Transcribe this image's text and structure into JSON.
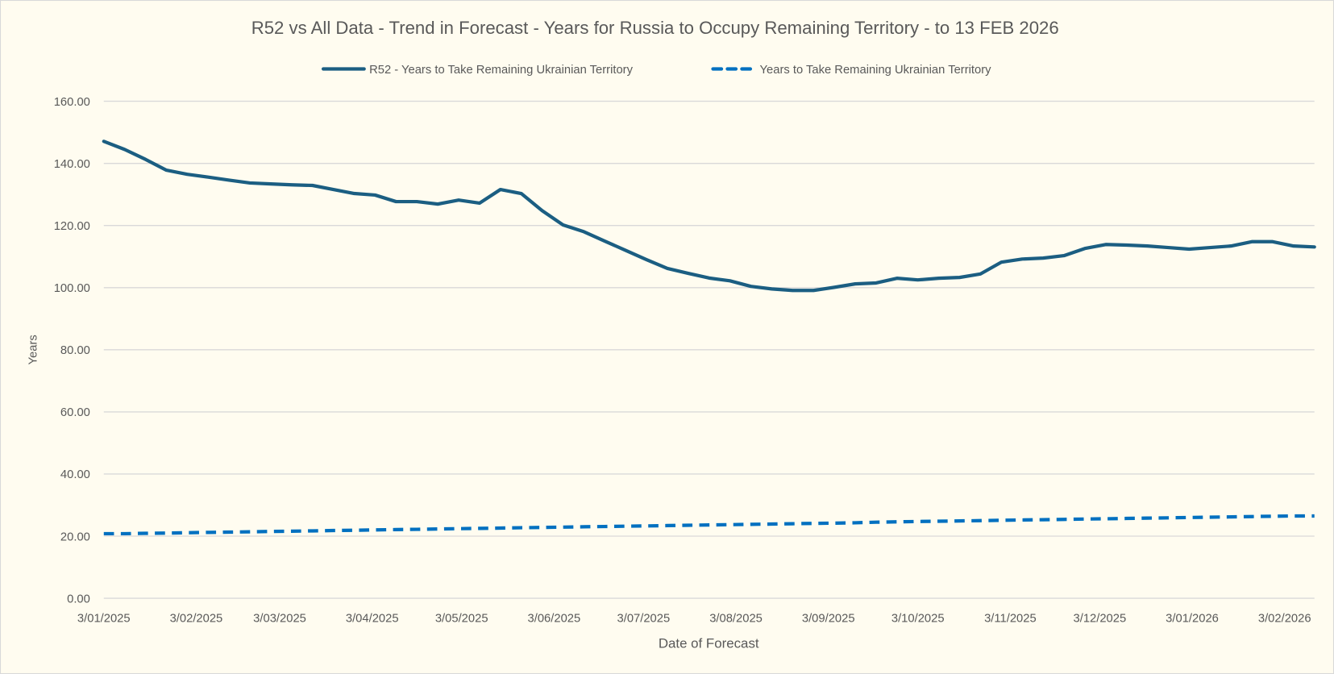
{
  "chart_data": {
    "type": "line",
    "title": "R52 vs All Data  - Trend in Forecast - Years for Russia to Occupy Remaining Territory - to 13 FEB 2026",
    "xlabel": "Date of Forecast",
    "ylabel": "Years",
    "ylim": [
      0,
      160
    ],
    "yticks": [
      "0.00",
      "20.00",
      "40.00",
      "60.00",
      "80.00",
      "100.00",
      "120.00",
      "140.00",
      "160.00"
    ],
    "xlim": [
      "2025-01-03",
      "2026-02-13"
    ],
    "xticks": [
      "3/01/2025",
      "3/02/2025",
      "3/03/2025",
      "3/04/2025",
      "3/05/2025",
      "3/06/2025",
      "3/07/2025",
      "3/08/2025",
      "3/09/2025",
      "3/10/2025",
      "3/11/2025",
      "3/12/2025",
      "3/01/2026",
      "3/02/2026"
    ],
    "grid": true,
    "legend_position": "top",
    "background_color": "#fffcf0",
    "x": [
      "2025-01-03",
      "2025-01-10",
      "2025-01-17",
      "2025-01-24",
      "2025-01-31",
      "2025-02-07",
      "2025-02-14",
      "2025-02-21",
      "2025-02-28",
      "2025-03-07",
      "2025-03-14",
      "2025-03-21",
      "2025-03-28",
      "2025-04-04",
      "2025-04-11",
      "2025-04-18",
      "2025-04-25",
      "2025-05-02",
      "2025-05-09",
      "2025-05-16",
      "2025-05-23",
      "2025-05-30",
      "2025-06-06",
      "2025-06-13",
      "2025-06-20",
      "2025-06-27",
      "2025-07-04",
      "2025-07-11",
      "2025-07-18",
      "2025-07-25",
      "2025-08-01",
      "2025-08-08",
      "2025-08-15",
      "2025-08-22",
      "2025-08-29",
      "2025-09-05",
      "2025-09-12",
      "2025-09-19",
      "2025-09-26",
      "2025-10-03",
      "2025-10-10",
      "2025-10-17",
      "2025-10-24",
      "2025-10-31",
      "2025-11-07",
      "2025-11-14",
      "2025-11-21",
      "2025-11-28",
      "2025-12-05",
      "2025-12-12",
      "2025-12-19",
      "2025-12-26",
      "2026-01-02",
      "2026-01-09",
      "2026-01-16",
      "2026-01-23",
      "2026-01-30",
      "2026-02-06",
      "2026-02-13"
    ],
    "series": [
      {
        "name": "R52 - Years to Take Remaining Ukrainian Territory",
        "color": "#1b5e82",
        "style": "solid",
        "values": [
          147.1,
          144.5,
          141.3,
          137.8,
          136.5,
          135.6,
          134.6,
          133.7,
          133.4,
          133.1,
          132.9,
          131.6,
          130.3,
          129.8,
          127.7,
          127.7,
          126.9,
          128.2,
          127.2,
          131.6,
          130.3,
          124.8,
          120.2,
          118.0,
          115.0,
          112.0,
          109.0,
          106.2,
          104.6,
          103.1,
          102.2,
          100.4,
          99.6,
          99.1,
          99.1,
          100.1,
          101.2,
          101.5,
          103.0,
          102.5,
          103.0,
          103.3,
          104.4,
          108.2,
          109.2,
          109.5,
          110.3,
          112.6,
          113.9,
          113.7,
          113.4,
          112.9,
          112.4,
          112.9,
          113.4,
          114.8,
          114.8,
          113.4,
          113.1
        ]
      },
      {
        "name": "Years to Take Remaining Ukrainian Territory",
        "color": "#0070c0",
        "style": "dashed",
        "values": [
          20.8,
          20.8,
          20.9,
          21.0,
          21.1,
          21.2,
          21.3,
          21.4,
          21.5,
          21.6,
          21.7,
          21.8,
          21.9,
          22.0,
          22.1,
          22.2,
          22.3,
          22.4,
          22.5,
          22.6,
          22.7,
          22.8,
          22.9,
          23.0,
          23.1,
          23.2,
          23.3,
          23.4,
          23.5,
          23.6,
          23.7,
          23.8,
          23.9,
          24.0,
          24.1,
          24.2,
          24.3,
          24.5,
          24.6,
          24.7,
          24.8,
          24.9,
          25.0,
          25.1,
          25.2,
          25.3,
          25.4,
          25.5,
          25.6,
          25.7,
          25.8,
          25.9,
          26.0,
          26.1,
          26.2,
          26.3,
          26.4,
          26.5,
          26.5
        ]
      }
    ]
  }
}
